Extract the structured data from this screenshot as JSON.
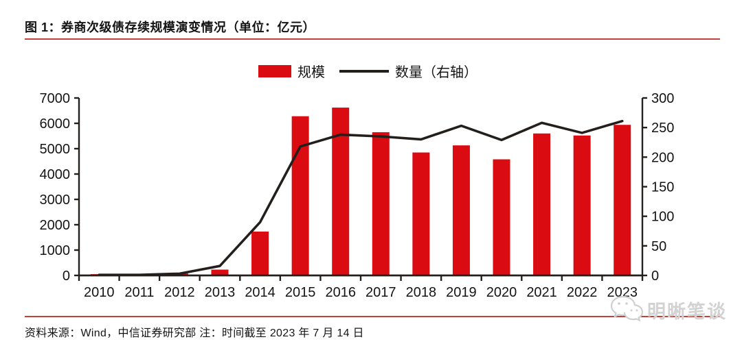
{
  "header": {
    "title": "图 1：券商次级债存续规模演变情况（单位：亿元）"
  },
  "chart_data": {
    "type": "bar",
    "subtype": "bar+line dual axis",
    "categories": [
      "2010",
      "2011",
      "2012",
      "2013",
      "2014",
      "2015",
      "2016",
      "2017",
      "2018",
      "2019",
      "2020",
      "2021",
      "2022",
      "2023"
    ],
    "series": [
      {
        "name": "规模",
        "type": "bar",
        "axis": "left",
        "values": [
          50,
          60,
          75,
          230,
          1730,
          6280,
          6620,
          5650,
          4850,
          5130,
          4580,
          5600,
          5520,
          5940
        ]
      },
      {
        "name": "数量（右轴）",
        "type": "line",
        "axis": "right",
        "values": [
          1,
          1,
          3,
          16,
          90,
          218,
          238,
          235,
          230,
          253,
          229,
          258,
          241,
          261
        ]
      }
    ],
    "left_axis": {
      "min": 0,
      "max": 7000,
      "step": 1000,
      "ticks": [
        "0",
        "1000",
        "2000",
        "3000",
        "4000",
        "5000",
        "6000",
        "7000"
      ]
    },
    "right_axis": {
      "min": 0,
      "max": 300,
      "step": 50,
      "ticks": [
        "0",
        "50",
        "100",
        "150",
        "200",
        "250",
        "300"
      ]
    },
    "legend_position": "top",
    "grid": false,
    "unit_note": "亿元"
  },
  "footer": {
    "source_note": "资料来源：Wind，中信证券研究部  注：时间截至 2023 年 7 月 14 日"
  },
  "watermark": {
    "text": "明晰笔谈",
    "icon": "wechat-icon"
  },
  "colors": {
    "bar": "#db0b12",
    "line": "#231f1c",
    "axis": "#231f1c",
    "tick_label": "#141414",
    "rule": "#c2423b",
    "watermark": "#d2d2d2"
  }
}
